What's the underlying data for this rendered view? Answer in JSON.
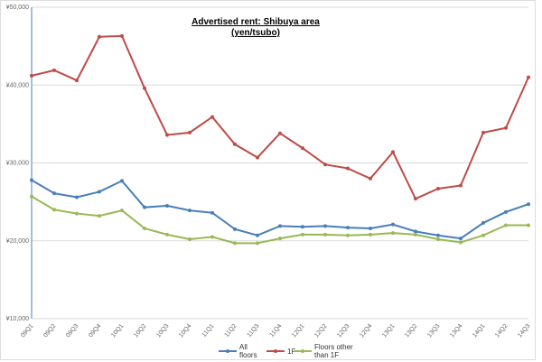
{
  "chart_data": {
    "type": "line",
    "title": "Advertised rent: Shibuya area",
    "subtitle": "(yen/tsubo)",
    "xlabel": "",
    "ylabel": "",
    "ylim": [
      10000,
      50000
    ],
    "yticks": [
      "¥10,000",
      "¥20,000",
      "¥30,000",
      "¥40,000",
      "¥50,000"
    ],
    "ytick_values": [
      10000,
      20000,
      30000,
      40000,
      50000
    ],
    "grid": true,
    "legend_position": "bottom",
    "categories": [
      "09Q1",
      "09Q2",
      "09Q3",
      "09Q4",
      "10Q1",
      "10Q2",
      "10Q3",
      "10Q4",
      "11Q1",
      "11Q2",
      "11Q3",
      "11Q4",
      "12Q1",
      "12Q2",
      "12Q3",
      "12Q4",
      "13Q1",
      "13Q2",
      "13Q3",
      "13Q4",
      "14Q1",
      "14Q2",
      "14Q3"
    ],
    "series": [
      {
        "name": "All floors",
        "color": "#4a7ebb",
        "values": [
          27800,
          26100,
          25600,
          26300,
          27700,
          24300,
          24500,
          23900,
          23600,
          21500,
          20700,
          21900,
          21800,
          21900,
          21700,
          21600,
          22100,
          21200,
          20700,
          20300,
          22300,
          23700,
          24700
        ]
      },
      {
        "name": "1F",
        "color": "#be4b48",
        "values": [
          41200,
          41900,
          40600,
          46200,
          46300,
          39600,
          33600,
          33900,
          35900,
          32400,
          30700,
          33800,
          31900,
          29800,
          29300,
          28000,
          31400,
          25400,
          26700,
          27100,
          33900,
          34500,
          41000
        ]
      },
      {
        "name": "Floors other than 1F",
        "color": "#98b954",
        "values": [
          25700,
          24000,
          23500,
          23200,
          23900,
          21600,
          20800,
          20200,
          20500,
          19700,
          19700,
          20300,
          20800,
          20800,
          20700,
          20800,
          21000,
          20800,
          20200,
          19800,
          20700,
          22000,
          22000
        ]
      }
    ],
    "legend_lines": [
      [
        "All",
        "floors"
      ],
      [
        "1F"
      ],
      [
        "Floors other",
        "than 1F"
      ]
    ]
  }
}
